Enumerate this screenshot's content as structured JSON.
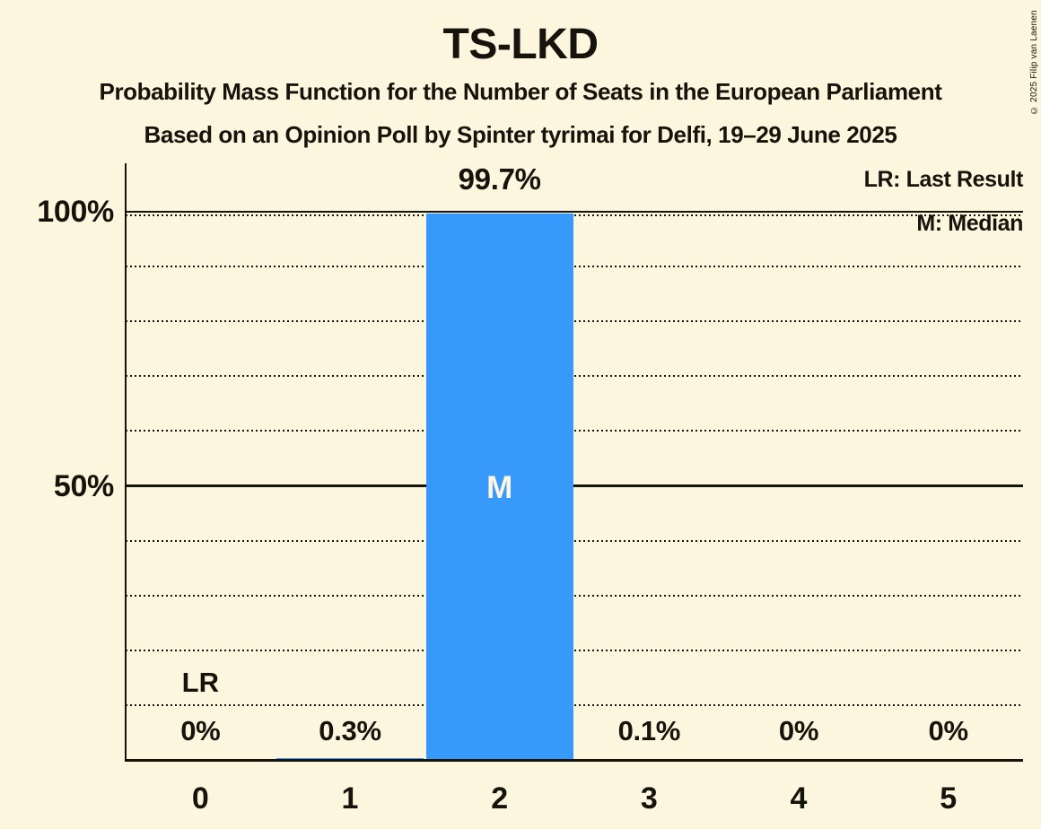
{
  "title": "TS-LKD",
  "subtitle": "Probability Mass Function for the Number of Seats in the European Parliament",
  "source_line": "Based on an Opinion Poll by Spinter tyrimai for Delfi, 19–29 June 2025",
  "copyright": "© 2025 Filip van Laenen",
  "legend": {
    "last_result": "LR: Last Result",
    "median": "M: Median"
  },
  "colors": {
    "background": "#FCF6DE",
    "ink": "#15130B",
    "bar": "#3799FA",
    "bar_label": "#FCF6DE"
  },
  "chart_data": {
    "type": "bar",
    "title": "TS-LKD",
    "categories": [
      "0",
      "1",
      "2",
      "3",
      "4",
      "5"
    ],
    "values": [
      0,
      0.3,
      99.7,
      0.1,
      0,
      0
    ],
    "value_labels": [
      "0%",
      "0.3%",
      "99.7%",
      "0.1%",
      "0%",
      "0%"
    ],
    "xlabel": "",
    "ylabel": "",
    "ylim": [
      0,
      100
    ],
    "yticks": [
      {
        "value": 100,
        "label": "100%"
      },
      {
        "value": 50,
        "label": "50%"
      }
    ],
    "gridlines": {
      "solid_pct": [
        50,
        100
      ],
      "dotted_pct": [
        10,
        20,
        30,
        40,
        60,
        70,
        80,
        90
      ],
      "median_level_dotted_pct": 99.7
    },
    "median": {
      "category_index": 2,
      "marker": "M"
    },
    "last_result": {
      "category_index": 0,
      "marker": "LR"
    },
    "legend_position": "top-right",
    "grid": true
  }
}
